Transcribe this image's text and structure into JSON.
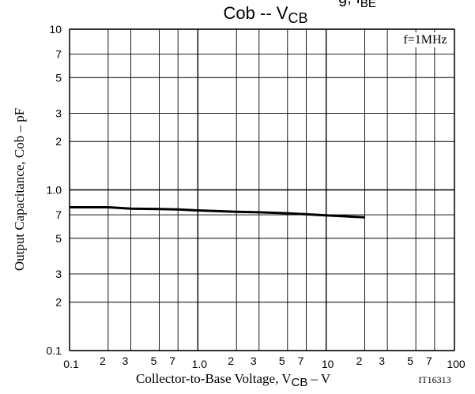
{
  "chart_data": {
    "type": "line",
    "title": "Cob -- V",
    "title_subscript": "CB",
    "clipped_top_text": "g, I",
    "clipped_top_subscript": "BE",
    "xlabel": "Collector-to-Base Voltage, V",
    "xlabel_subscript": "CB",
    "xlabel_suffix": "– V",
    "ylabel": "Output Capacitance, Cob – pF",
    "annotation": "f=1MHz",
    "figure_id": "IT16313",
    "x_scale": "log",
    "y_scale": "log",
    "xlim": [
      0.1,
      100
    ],
    "ylim": [
      0.1,
      10
    ],
    "grid": true,
    "x_major_ticks": [
      {
        "value": 0.1,
        "label": "0.1"
      },
      {
        "value": 1,
        "label": "1.0"
      },
      {
        "value": 10,
        "label": "10"
      },
      {
        "value": 100,
        "label": "100"
      }
    ],
    "x_minor_ticks": [
      {
        "value": 0.2,
        "label": "2"
      },
      {
        "value": 0.3,
        "label": "3"
      },
      {
        "value": 0.5,
        "label": "5"
      },
      {
        "value": 0.7,
        "label": "7"
      },
      {
        "value": 2,
        "label": "2"
      },
      {
        "value": 3,
        "label": "3"
      },
      {
        "value": 5,
        "label": "5"
      },
      {
        "value": 7,
        "label": "7"
      },
      {
        "value": 20,
        "label": "2"
      },
      {
        "value": 30,
        "label": "3"
      },
      {
        "value": 50,
        "label": "5"
      },
      {
        "value": 70,
        "label": "7"
      }
    ],
    "y_major_ticks": [
      {
        "value": 0.1,
        "label": "0.1"
      },
      {
        "value": 1,
        "label": "1.0"
      },
      {
        "value": 10,
        "label": "10"
      }
    ],
    "y_minor_ticks": [
      {
        "value": 0.2,
        "label": "2"
      },
      {
        "value": 0.3,
        "label": "3"
      },
      {
        "value": 0.5,
        "label": "5"
      },
      {
        "value": 0.7,
        "label": "7"
      },
      {
        "value": 2,
        "label": "2"
      },
      {
        "value": 3,
        "label": "3"
      },
      {
        "value": 5,
        "label": "5"
      },
      {
        "value": 7,
        "label": "7"
      }
    ],
    "series": [
      {
        "x": [
          0.1,
          0.2,
          0.3,
          0.5,
          0.7,
          1,
          2,
          3,
          5,
          7,
          10,
          20
        ],
        "y": [
          0.78,
          0.78,
          0.765,
          0.76,
          0.755,
          0.745,
          0.73,
          0.725,
          0.715,
          0.705,
          0.695,
          0.675
        ]
      }
    ]
  }
}
